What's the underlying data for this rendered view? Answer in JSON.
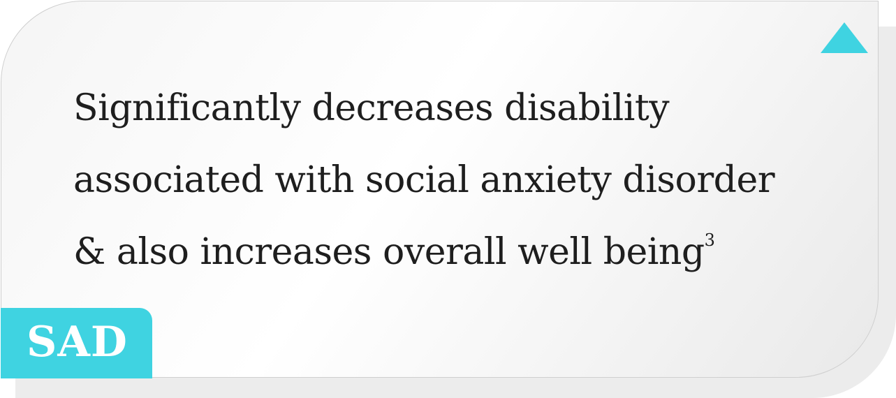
{
  "card": {
    "lines": [
      "Significantly decreases disability",
      "associated with social anxiety disorder",
      "& also increases overall well being"
    ],
    "footnote": "3",
    "indicator_icon": "up-arrow-icon"
  },
  "badge": {
    "label": "SAD"
  },
  "colors": {
    "accent": "#3fd3e1",
    "text": "#1e1e1e",
    "card_border": "#cfcfcf",
    "shadow": "#ececec"
  }
}
